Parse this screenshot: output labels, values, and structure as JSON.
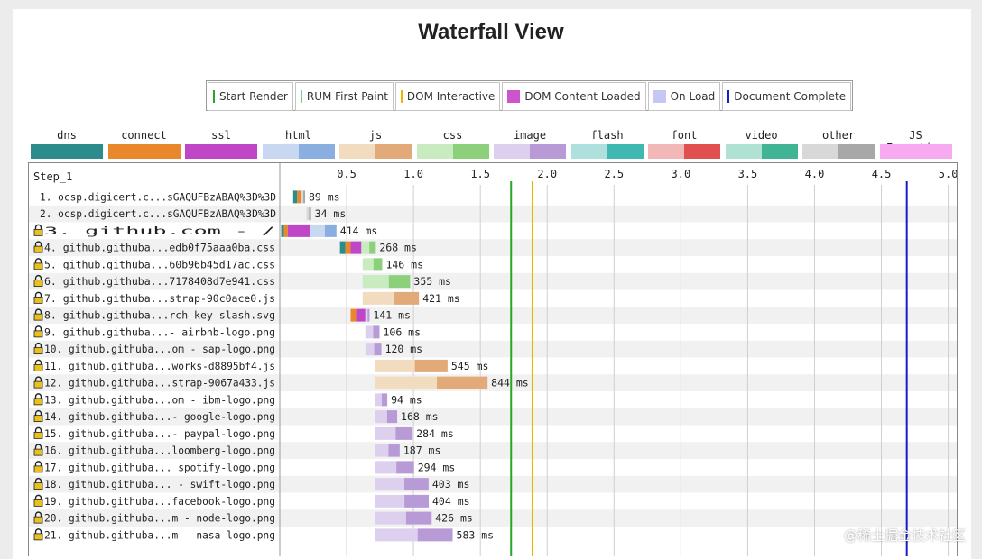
{
  "page": {
    "title": "Waterfall View"
  },
  "legend": [
    {
      "label": "Start Render",
      "color": "#2aa52a",
      "kind": "line"
    },
    {
      "label": "RUM First Paint",
      "color": "#8cc68c",
      "kind": "line"
    },
    {
      "label": "DOM Interactive",
      "color": "#f0b400",
      "kind": "line"
    },
    {
      "label": "DOM Content Loaded",
      "color": "#cc55cc",
      "kind": "square"
    },
    {
      "label": "On Load",
      "color": "#c5c8f5",
      "kind": "square"
    },
    {
      "label": "Document Complete",
      "color": "#1a1acc",
      "kind": "line"
    }
  ],
  "request_types": [
    {
      "name": "dns",
      "color1": "#2c8c8c",
      "color2": "#2c8c8c"
    },
    {
      "name": "connect",
      "color1": "#e8882a",
      "color2": "#e8882a"
    },
    {
      "name": "ssl",
      "color1": "#c046c8",
      "color2": "#c046c8"
    },
    {
      "name": "html",
      "color1": "#c8d8f0",
      "color2": "#8aaee0"
    },
    {
      "name": "js",
      "color1": "#f2dcc0",
      "color2": "#e2aa78"
    },
    {
      "name": "css",
      "color1": "#c8ecc0",
      "color2": "#8cd07c"
    },
    {
      "name": "image",
      "color1": "#ddd0ee",
      "color2": "#b89ad6"
    },
    {
      "name": "flash",
      "color1": "#aee0de",
      "color2": "#3eb8b0"
    },
    {
      "name": "font",
      "color1": "#f2b8b8",
      "color2": "#e05050"
    },
    {
      "name": "video",
      "color1": "#b0e2d4",
      "color2": "#40b494"
    },
    {
      "name": "other",
      "color1": "#d8d8d8",
      "color2": "#a8a8a8"
    },
    {
      "name": "JS Execution",
      "color1": "#f8aaf0",
      "color2": "#f8aaf0"
    }
  ],
  "chart_data": {
    "type": "waterfall",
    "step_label": "Step_1",
    "x_ticks": [
      "0.5",
      "1.0",
      "1.5",
      "2.0",
      "2.5",
      "3.0",
      "3.5",
      "4.0",
      "4.5",
      "5.0"
    ],
    "x_range": [
      0,
      5.05
    ],
    "x_unit": "s",
    "markers": [
      {
        "event": "Start Render",
        "time": 1.73,
        "color": "#2aa52a"
      },
      {
        "event": "DOM Interactive",
        "time": 1.89,
        "color": "#f0b400"
      },
      {
        "event": "Document Complete",
        "time": 4.69,
        "color": "#1a1acc"
      }
    ],
    "requests": [
      {
        "label": "1. ocsp.digicert.c...sGAQUFBzABAQ%3D%3D",
        "secure": false,
        "type": "other",
        "start": 0.1,
        "dns": 0.03,
        "connect": 0.03,
        "ssl": 0,
        "duration_ms": 89,
        "duration_label": "89 ms"
      },
      {
        "label": "2. ocsp.digicert.c...sGAQUFBzABAQ%3D%3D",
        "secure": false,
        "type": "other",
        "start": 0.2,
        "dns": 0,
        "connect": 0,
        "ssl": 0,
        "duration_ms": 34,
        "duration_label": "34 ms"
      },
      {
        "label": "3. github.com - /",
        "secure": true,
        "type": "html",
        "start": 0.01,
        "dns": 0.02,
        "connect": 0.03,
        "ssl": 0.17,
        "duration_ms": 414,
        "duration_label": "414 ms"
      },
      {
        "label": "4. github.githuba...edb0f75aaa0ba.css",
        "secure": true,
        "type": "css",
        "start": 0.45,
        "dns": 0.04,
        "connect": 0.04,
        "ssl": 0.08,
        "duration_ms": 268,
        "duration_label": "268 ms"
      },
      {
        "label": "5. github.githuba...60b96b45d17ac.css",
        "secure": true,
        "type": "css",
        "start": 0.62,
        "dns": 0,
        "connect": 0,
        "ssl": 0,
        "duration_ms": 146,
        "duration_label": "146 ms"
      },
      {
        "label": "6. github.githuba...7178408d7e941.css",
        "secure": true,
        "type": "css",
        "start": 0.62,
        "dns": 0,
        "connect": 0,
        "ssl": 0,
        "duration_ms": 355,
        "duration_label": "355 ms"
      },
      {
        "label": "7. github.githuba...strap-90c0ace0.js",
        "secure": true,
        "type": "js",
        "start": 0.62,
        "dns": 0,
        "connect": 0,
        "ssl": 0,
        "duration_ms": 421,
        "duration_label": "421 ms"
      },
      {
        "label": "8. github.githuba...rch-key-slash.svg",
        "secure": true,
        "type": "image",
        "start": 0.53,
        "dns": 0,
        "connect": 0.04,
        "ssl": 0.07,
        "duration_ms": 141,
        "duration_label": "141 ms"
      },
      {
        "label": "9. github.githuba...- airbnb-logo.png",
        "secure": true,
        "type": "image",
        "start": 0.64,
        "dns": 0,
        "connect": 0,
        "ssl": 0,
        "duration_ms": 106,
        "duration_label": "106 ms"
      },
      {
        "label": "10. github.githuba...om - sap-logo.png",
        "secure": true,
        "type": "image",
        "start": 0.64,
        "dns": 0,
        "connect": 0,
        "ssl": 0,
        "duration_ms": 120,
        "duration_label": "120 ms"
      },
      {
        "label": "11. github.githuba...works-d8895bf4.js",
        "secure": true,
        "type": "js",
        "start": 0.71,
        "dns": 0,
        "connect": 0,
        "ssl": 0,
        "duration_ms": 545,
        "duration_label": "545 ms"
      },
      {
        "label": "12. github.githuba...strap-9067a433.js",
        "secure": true,
        "type": "js",
        "start": 0.71,
        "dns": 0,
        "connect": 0,
        "ssl": 0,
        "duration_ms": 844,
        "duration_label": "844 ms"
      },
      {
        "label": "13. github.githuba...om - ibm-logo.png",
        "secure": true,
        "type": "image",
        "start": 0.71,
        "dns": 0,
        "connect": 0,
        "ssl": 0,
        "duration_ms": 94,
        "duration_label": "94 ms"
      },
      {
        "label": "14. github.githuba...- google-logo.png",
        "secure": true,
        "type": "image",
        "start": 0.71,
        "dns": 0,
        "connect": 0,
        "ssl": 0,
        "duration_ms": 168,
        "duration_label": "168 ms"
      },
      {
        "label": "15. github.githuba...- paypal-logo.png",
        "secure": true,
        "type": "image",
        "start": 0.71,
        "dns": 0,
        "connect": 0,
        "ssl": 0,
        "duration_ms": 284,
        "duration_label": "284 ms"
      },
      {
        "label": "16. github.githuba...loomberg-logo.png",
        "secure": true,
        "type": "image",
        "start": 0.71,
        "dns": 0,
        "connect": 0,
        "ssl": 0,
        "duration_ms": 187,
        "duration_label": "187 ms"
      },
      {
        "label": "17. github.githuba... spotify-logo.png",
        "secure": true,
        "type": "image",
        "start": 0.71,
        "dns": 0,
        "connect": 0,
        "ssl": 0,
        "duration_ms": 294,
        "duration_label": "294 ms"
      },
      {
        "label": "18. github.githuba... - swift-logo.png",
        "secure": true,
        "type": "image",
        "start": 0.71,
        "dns": 0,
        "connect": 0,
        "ssl": 0,
        "duration_ms": 403,
        "duration_label": "403 ms"
      },
      {
        "label": "19. github.githuba...facebook-logo.png",
        "secure": true,
        "type": "image",
        "start": 0.71,
        "dns": 0,
        "connect": 0,
        "ssl": 0,
        "duration_ms": 404,
        "duration_label": "404 ms"
      },
      {
        "label": "20. github.githuba...m - node-logo.png",
        "secure": true,
        "type": "image",
        "start": 0.71,
        "dns": 0,
        "connect": 0,
        "ssl": 0,
        "duration_ms": 426,
        "duration_label": "426 ms"
      },
      {
        "label": "21. github.githuba...m - nasa-logo.png",
        "secure": true,
        "type": "image",
        "start": 0.71,
        "dns": 0,
        "connect": 0,
        "ssl": 0,
        "duration_ms": 583,
        "duration_label": "583 ms"
      }
    ]
  },
  "watermark": "@稀土掘金技术社区"
}
